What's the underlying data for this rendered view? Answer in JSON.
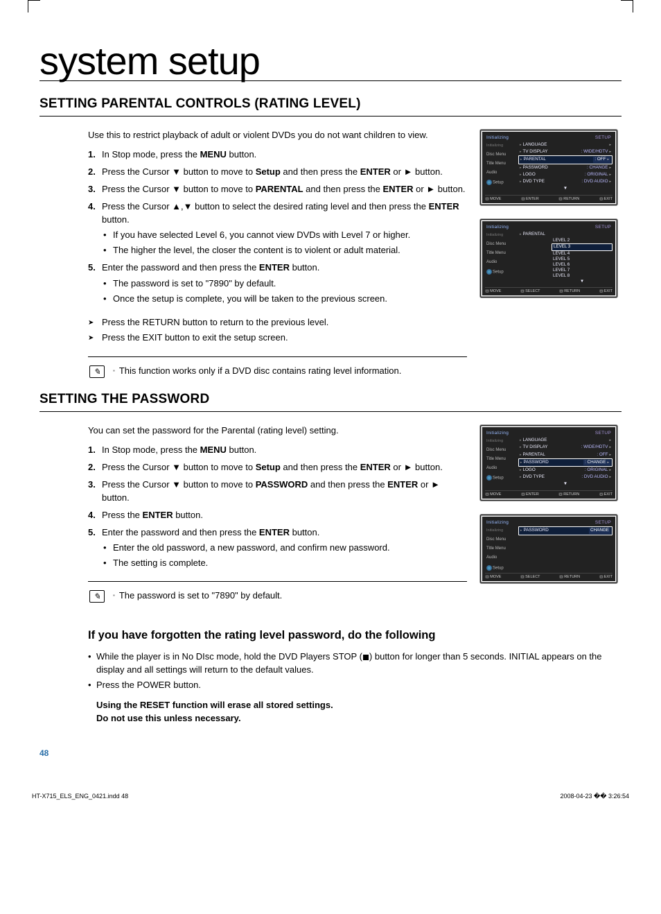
{
  "title": "system setup",
  "section1": {
    "heading": "SETTING PARENTAL CONTROLS (RATING LEVEL)",
    "intro": "Use this to restrict playback of adult or violent DVDs you do not want children to view.",
    "steps": [
      {
        "n": "1.",
        "pre": "In Stop mode, press the ",
        "bold1": "MENU",
        "post1": " button."
      },
      {
        "n": "2.",
        "pre": "Press the Cursor ▼ button to move to ",
        "bold1": "Setup",
        "post1": " and then press the ",
        "bold2": "ENTER",
        "post2": " or ► button."
      },
      {
        "n": "3.",
        "pre": "Press the Cursor ▼ button to move to ",
        "bold1": "PARENTAL",
        "post1": " and then press the ",
        "bold2": "ENTER",
        "post2": " or ► button."
      },
      {
        "n": "4.",
        "pre": "Press the Cursor ▲,▼ button to select the desired rating level and then press the ",
        "bold1": "ENTER",
        "post1": " button.",
        "subs": [
          "If you have selected Level 6, you cannot view DVDs with Level 7 or higher.",
          "The higher the level, the closer the content is to violent or adult material."
        ]
      },
      {
        "n": "5.",
        "pre": "Enter the password and then press the ",
        "bold1": "ENTER",
        "post1": " button.",
        "subs": [
          "The password is set to \"7890\" by default.",
          "Once the setup is complete, you will be taken to the previous screen."
        ]
      }
    ],
    "arrows": [
      {
        "pre": "Press the ",
        "bold": "RETURN",
        "post": " button to return to the previous level."
      },
      {
        "pre": "Press the ",
        "bold": "EXIT",
        "post": " button to exit the setup screen."
      }
    ],
    "note": "This function works only if a DVD disc contains rating level information."
  },
  "section2": {
    "heading": "SETTING THE PASSWORD",
    "intro": "You can set the password for the Parental (rating level) setting.",
    "steps": [
      {
        "n": "1.",
        "pre": "In Stop mode, press the ",
        "bold1": "MENU",
        "post1": " button."
      },
      {
        "n": "2.",
        "pre": "Press the Cursor ▼ button to move to ",
        "bold1": "Setup",
        "post1": " and then press the ",
        "bold2": "ENTER",
        "post2": " or ► button."
      },
      {
        "n": "3.",
        "pre": "Press the Cursor ▼ button to move to ",
        "bold1": "PASSWORD",
        "post1": " and then press the ",
        "bold2": "ENTER",
        "post2": " or ► button."
      },
      {
        "n": "4.",
        "pre": "Press the ",
        "bold1": "ENTER",
        "post1": " button."
      },
      {
        "n": "5.",
        "pre": "Enter the password and then press the ",
        "bold1": "ENTER",
        "post1": " button.",
        "subs": [
          "Enter the old password, a new password, and confirm new password.",
          "The setting is complete."
        ]
      }
    ],
    "note": "The password is set to \"7890\" by default."
  },
  "section3": {
    "heading": "If you have forgotten the rating level password, do the following",
    "bullets": [
      {
        "pre": "While the player is in No DIsc mode, hold the DVD Players ",
        "bold1": "STOP",
        "mid": " (■) button for longer than 5 seconds. ",
        "bold2": "INITIAL",
        "post": " appears on the display and all settings will return to the default values."
      },
      {
        "pre": "Press the ",
        "bold1": "POWER",
        "post": " button."
      }
    ],
    "warn1": "Using the RESET function will erase all stored settings.",
    "warn2": "Do not use this unless necessary."
  },
  "osd": {
    "setup_label": "SETUP",
    "tabs": {
      "disc": "Disc Menu",
      "title": "Title Menu",
      "audio": "Audio",
      "setup": "Setup"
    },
    "menu1_rows": [
      {
        "k": "LANGUAGE",
        "v": ""
      },
      {
        "k": "TV DISPLAY",
        "v": "WIDE/HDTV"
      },
      {
        "k": "PARENTAL",
        "v": "OFF",
        "hl": true
      },
      {
        "k": "PASSWORD",
        "v": "CHANGE"
      },
      {
        "k": "LOGO",
        "v": "ORIGINAL"
      },
      {
        "k": "DVD TYPE",
        "v": "DVD AUDIO"
      }
    ],
    "menu2_label": "PARENTAL",
    "menu2_levels": [
      "LEVEL 2",
      "LEVEL 3",
      "LEVEL 4",
      "LEVEL 5",
      "LEVEL 6",
      "LEVEL 7",
      "LEVEL 8"
    ],
    "menu2_selected": 1,
    "menu3_rows": [
      {
        "k": "LANGUAGE",
        "v": ""
      },
      {
        "k": "TV DISPLAY",
        "v": "WIDE/HDTV"
      },
      {
        "k": "PARENTAL",
        "v": "OFF"
      },
      {
        "k": "PASSWORD",
        "v": "CHANGE",
        "hl": true
      },
      {
        "k": "LOGO",
        "v": "ORIGINAL"
      },
      {
        "k": "DVD TYPE",
        "v": "DVD AUDIO"
      }
    ],
    "menu4_label": "PASSWORD",
    "menu4_value": "CHANGE",
    "foot": {
      "move": "MOVE",
      "enter": "ENTER",
      "select": "SELECT",
      "ret": "RETURN",
      "exit": "EXIT"
    }
  },
  "page_number": "48",
  "footer_left": "HT-X715_ELS_ENG_0421.indd   48",
  "footer_right": "2008-04-23   �� 3:26:54"
}
